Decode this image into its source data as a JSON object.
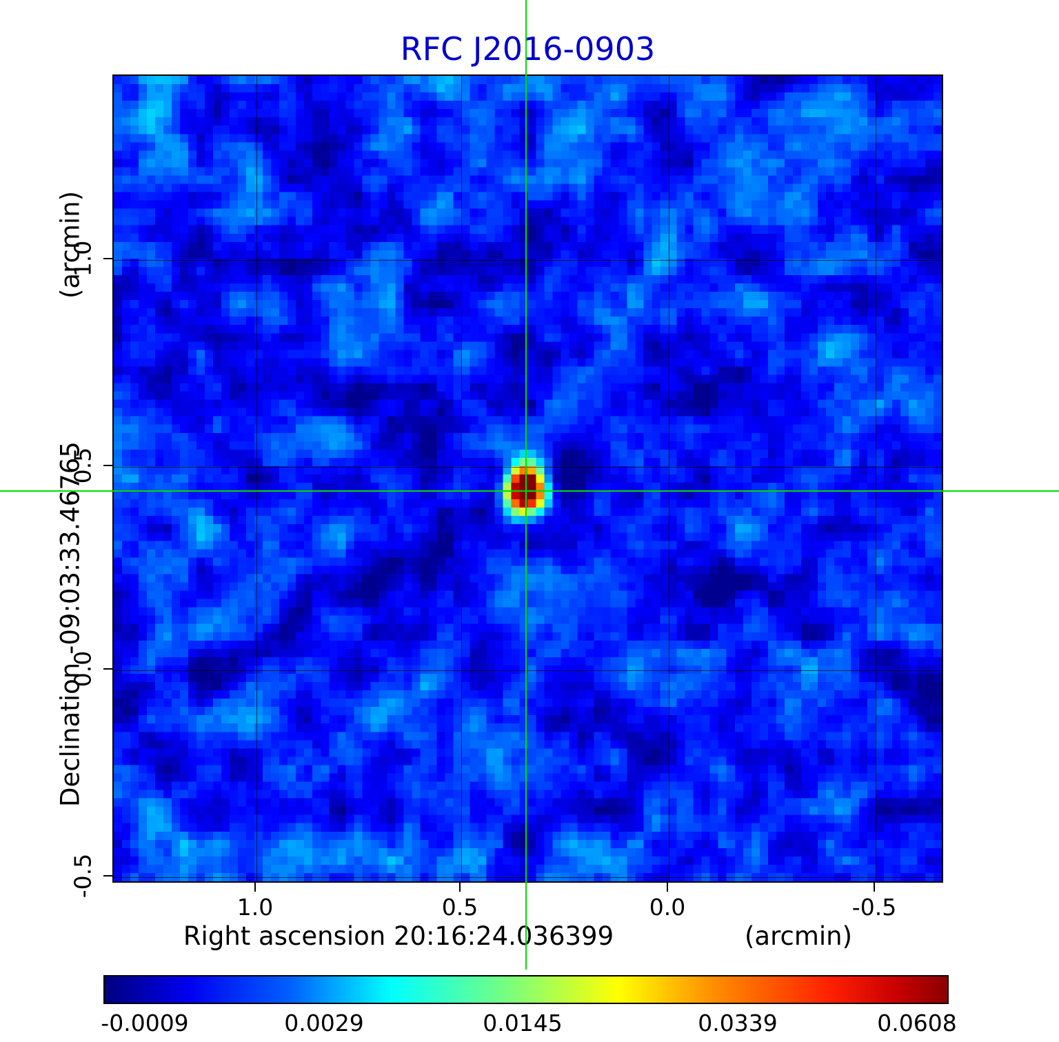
{
  "title": {
    "text": "RFC J2016-0903",
    "color": "#0000cc"
  },
  "axes": {
    "x": {
      "label": "Right ascension  20:16:24.036399",
      "unit": "(arcmin)",
      "ticks": [
        "1.0",
        "0.5",
        "0.0",
        "-0.5"
      ]
    },
    "y": {
      "label": "Declination  -09:03:33.46765",
      "unit": "(arcmin)",
      "ticks": [
        "1.0",
        "0.5",
        "0.0",
        "-0.5"
      ]
    }
  },
  "colorbar": {
    "ticks": [
      "-0.0009",
      "0.0029",
      "0.0145",
      "0.0339",
      "0.0608"
    ],
    "colormap": "jet"
  },
  "crosshair_color": "#00dd00",
  "chart_data": {
    "type": "heatmap",
    "title": "RFC J2016-0903",
    "xlabel": "Right ascension 20:16:24.036399 (arcmin)",
    "ylabel": "Declination -09:03:33.46765 (arcmin)",
    "x_range_arcmin": [
      1.35,
      -0.68
    ],
    "y_range_arcmin": [
      1.45,
      -0.51
    ],
    "x_ticks": [
      1.0,
      0.5,
      0.0,
      -0.5
    ],
    "y_ticks": [
      1.0,
      0.5,
      0.0,
      -0.5
    ],
    "grid": true,
    "colormap": "jet",
    "intensity_ticks": [
      -0.0009,
      0.0029,
      0.0145,
      0.0339,
      0.0608
    ],
    "intensity_min": -0.0009,
    "intensity_max": 0.0608,
    "background_level": 0.0006,
    "peak": {
      "value": 0.0608,
      "x_arcmin": 0.34,
      "y_arcmin": 0.44
    },
    "crosshair": {
      "x_arcmin": 0.34,
      "y_arcmin": 0.44,
      "color": "#00dd00"
    },
    "legend_position": "colorbar-bottom"
  }
}
